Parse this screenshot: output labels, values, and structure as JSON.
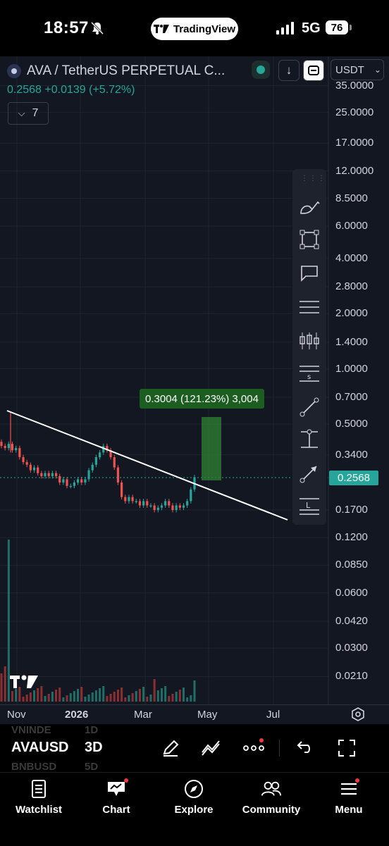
{
  "status_bar": {
    "time": "18:57",
    "app_pill": "TradingView",
    "network": "5G",
    "battery": "76"
  },
  "header": {
    "symbol_title": "AVA / TetherUS PERPETUAL C...",
    "currency": "USDT",
    "last_price": "0.2568",
    "change": "+0.0139 (+5.72%)",
    "indicator_count": "7"
  },
  "price_axis": {
    "labels": [
      "35.0000",
      "25.0000",
      "17.0000",
      "12.0000",
      "8.5000",
      "6.0000",
      "4.0000",
      "2.8000",
      "2.0000",
      "1.4000",
      "1.0000",
      "0.7000",
      "0.5000",
      "0.3400",
      "0.2568",
      "0.1700",
      "0.1200",
      "0.0850",
      "0.0600",
      "0.0420",
      "0.0300",
      "0.0210"
    ],
    "current_price_tag": "0.2568"
  },
  "time_axis": {
    "labels": [
      "Nov",
      "2026",
      "Mar",
      "May",
      "Jul"
    ]
  },
  "measure_tool": {
    "label": "0.3004 (121.23%) 3,004"
  },
  "chart_data": {
    "type": "candlestick",
    "scale": "log",
    "symbol": "AVAUSDT",
    "interval": "3D",
    "last_price": 0.2568,
    "x_ticks": [
      "Nov",
      "2026",
      "Mar",
      "May",
      "Jul"
    ],
    "y_ticks": [
      35,
      25,
      17,
      12,
      8.5,
      6,
      4,
      2.8,
      2,
      1.4,
      1,
      0.7,
      0.5,
      0.34,
      0.17,
      0.12,
      0.085,
      0.06,
      0.042,
      0.03,
      0.021
    ],
    "closes": [
      0.38,
      0.37,
      0.39,
      0.36,
      0.37,
      0.33,
      0.31,
      0.3,
      0.28,
      0.29,
      0.27,
      0.26,
      0.27,
      0.26,
      0.27,
      0.26,
      0.24,
      0.25,
      0.23,
      0.23,
      0.24,
      0.25,
      0.24,
      0.25,
      0.28,
      0.3,
      0.33,
      0.35,
      0.38,
      0.36,
      0.33,
      0.29,
      0.24,
      0.2,
      0.19,
      0.2,
      0.19,
      0.19,
      0.18,
      0.19,
      0.18,
      0.18,
      0.17,
      0.175,
      0.18,
      0.19,
      0.18,
      0.17,
      0.18,
      0.175,
      0.18,
      0.19,
      0.22,
      0.2568
    ],
    "trendline": {
      "from_price": 0.58,
      "to_price": 0.15
    },
    "measure": {
      "change": 0.3004,
      "percent": 121.23,
      "ticks": 3004
    },
    "grid": true
  },
  "bottom_toolbar": {
    "ticker": "AVAUSD",
    "interval": "3D",
    "ghost_ticker_1": "VNINDE",
    "ghost_ticker_2": "BNBUSD",
    "ghost_interval_1": "1D",
    "ghost_interval_2": "5D"
  },
  "nav": {
    "items": [
      {
        "label": "Watchlist"
      },
      {
        "label": "Chart"
      },
      {
        "label": "Explore"
      },
      {
        "label": "Community"
      },
      {
        "label": "Menu"
      }
    ]
  },
  "colors": {
    "up": "#26a69a",
    "down": "#ef5350",
    "background": "#131722",
    "measure_fill": "#1b5e20",
    "notification": "#f23645"
  }
}
